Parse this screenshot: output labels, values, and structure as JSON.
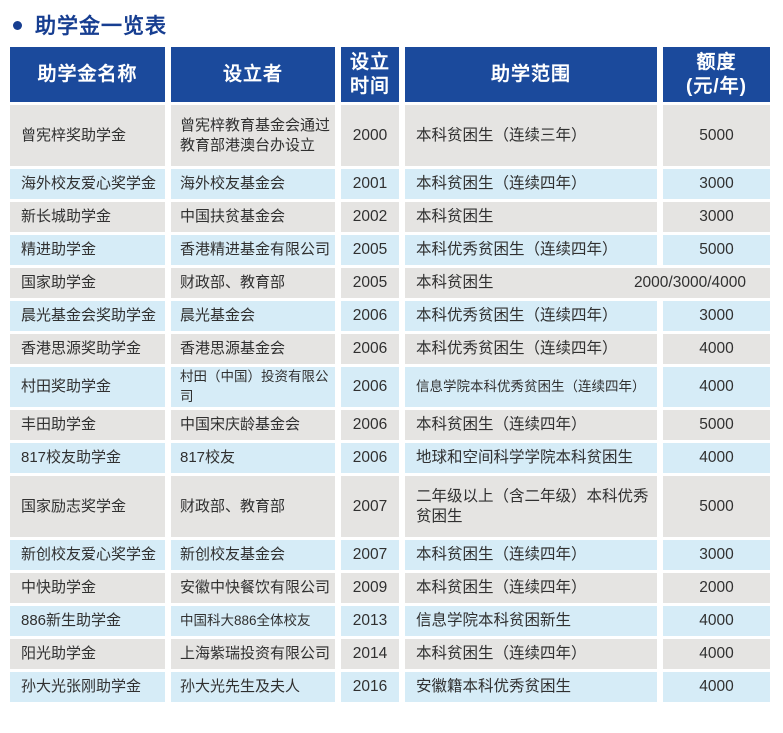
{
  "page": {
    "title": "助学金一览表",
    "colors": {
      "header_bg": "#1b4a9c",
      "title_text": "#173e91",
      "row_gray": "#e5e4e2",
      "row_light_blue": "#d6ecf7",
      "body_text": "#303030"
    }
  },
  "table": {
    "columns": [
      {
        "id": "name",
        "lines": [
          "助学金名称"
        ]
      },
      {
        "id": "founder",
        "lines": [
          "设立者"
        ]
      },
      {
        "id": "year",
        "lines": [
          "设立",
          "时间"
        ]
      },
      {
        "id": "scope",
        "lines": [
          "助学范围"
        ]
      },
      {
        "id": "amount",
        "lines": [
          "额度",
          "(元/年)"
        ]
      }
    ],
    "rows": [
      {
        "name": "曾宪梓奖助学金",
        "founder": "曾宪梓教育基金会通过教育部港澳台办设立",
        "year": "2000",
        "scope": "本科贫困生（连续三年）",
        "amount": "5000"
      },
      {
        "name": "海外校友爱心奖学金",
        "founder": "海外校友基金会",
        "year": "2001",
        "scope": "本科贫困生（连续四年）",
        "amount": "3000"
      },
      {
        "name": "新长城助学金",
        "founder": "中国扶贫基金会",
        "year": "2002",
        "scope": "本科贫困生",
        "amount": "3000"
      },
      {
        "name": "精进助学金",
        "founder": "香港精进基金有限公司",
        "year": "2005",
        "scope": "本科优秀贫困生（连续四年）",
        "amount": "5000"
      },
      {
        "name": "国家助学金",
        "founder": "财政部、教育部",
        "year": "2005",
        "scope": "本科贫困生",
        "amount": "2000/3000/4000"
      },
      {
        "name": "晨光基金会奖助学金",
        "founder": "晨光基金会",
        "year": "2006",
        "scope": "本科优秀贫困生（连续四年）",
        "amount": "3000"
      },
      {
        "name": "香港思源奖助学金",
        "founder": "香港思源基金会",
        "year": "2006",
        "scope": "本科优秀贫困生（连续四年）",
        "amount": "4000"
      },
      {
        "name": "村田奖助学金",
        "founder": "村田（中国）投资有限公司",
        "year": "2006",
        "scope": "信息学院本科优秀贫困生（连续四年）",
        "amount": "4000"
      },
      {
        "name": "丰田助学金",
        "founder": "中国宋庆龄基金会",
        "year": "2006",
        "scope": "本科贫困生（连续四年）",
        "amount": "5000"
      },
      {
        "name": "817校友助学金",
        "founder": "817校友",
        "year": "2006",
        "scope": "地球和空间科学学院本科贫困生",
        "amount": "4000"
      },
      {
        "name": "国家励志奖学金",
        "founder": "财政部、教育部",
        "year": "2007",
        "scope": "二年级以上（含二年级）本科优秀贫困生",
        "amount": "5000"
      },
      {
        "name": "新创校友爱心奖学金",
        "founder": "新创校友基金会",
        "year": "2007",
        "scope": "本科贫困生（连续四年）",
        "amount": "3000"
      },
      {
        "name": "中快助学金",
        "founder": "安徽中快餐饮有限公司",
        "year": "2009",
        "scope": "本科贫困生（连续四年）",
        "amount": "2000"
      },
      {
        "name": "886新生助学金",
        "founder": "中国科大886全体校友",
        "year": "2013",
        "scope": "信息学院本科贫困新生",
        "amount": "4000"
      },
      {
        "name": "阳光助学金",
        "founder": "上海紫瑞投资有限公司",
        "year": "2014",
        "scope": "本科贫困生（连续四年）",
        "amount": "4000"
      },
      {
        "name": "孙大光张刚助学金",
        "founder": "孙大光先生及夫人",
        "year": "2016",
        "scope": "安徽籍本科优秀贫困生",
        "amount": "4000"
      }
    ]
  }
}
